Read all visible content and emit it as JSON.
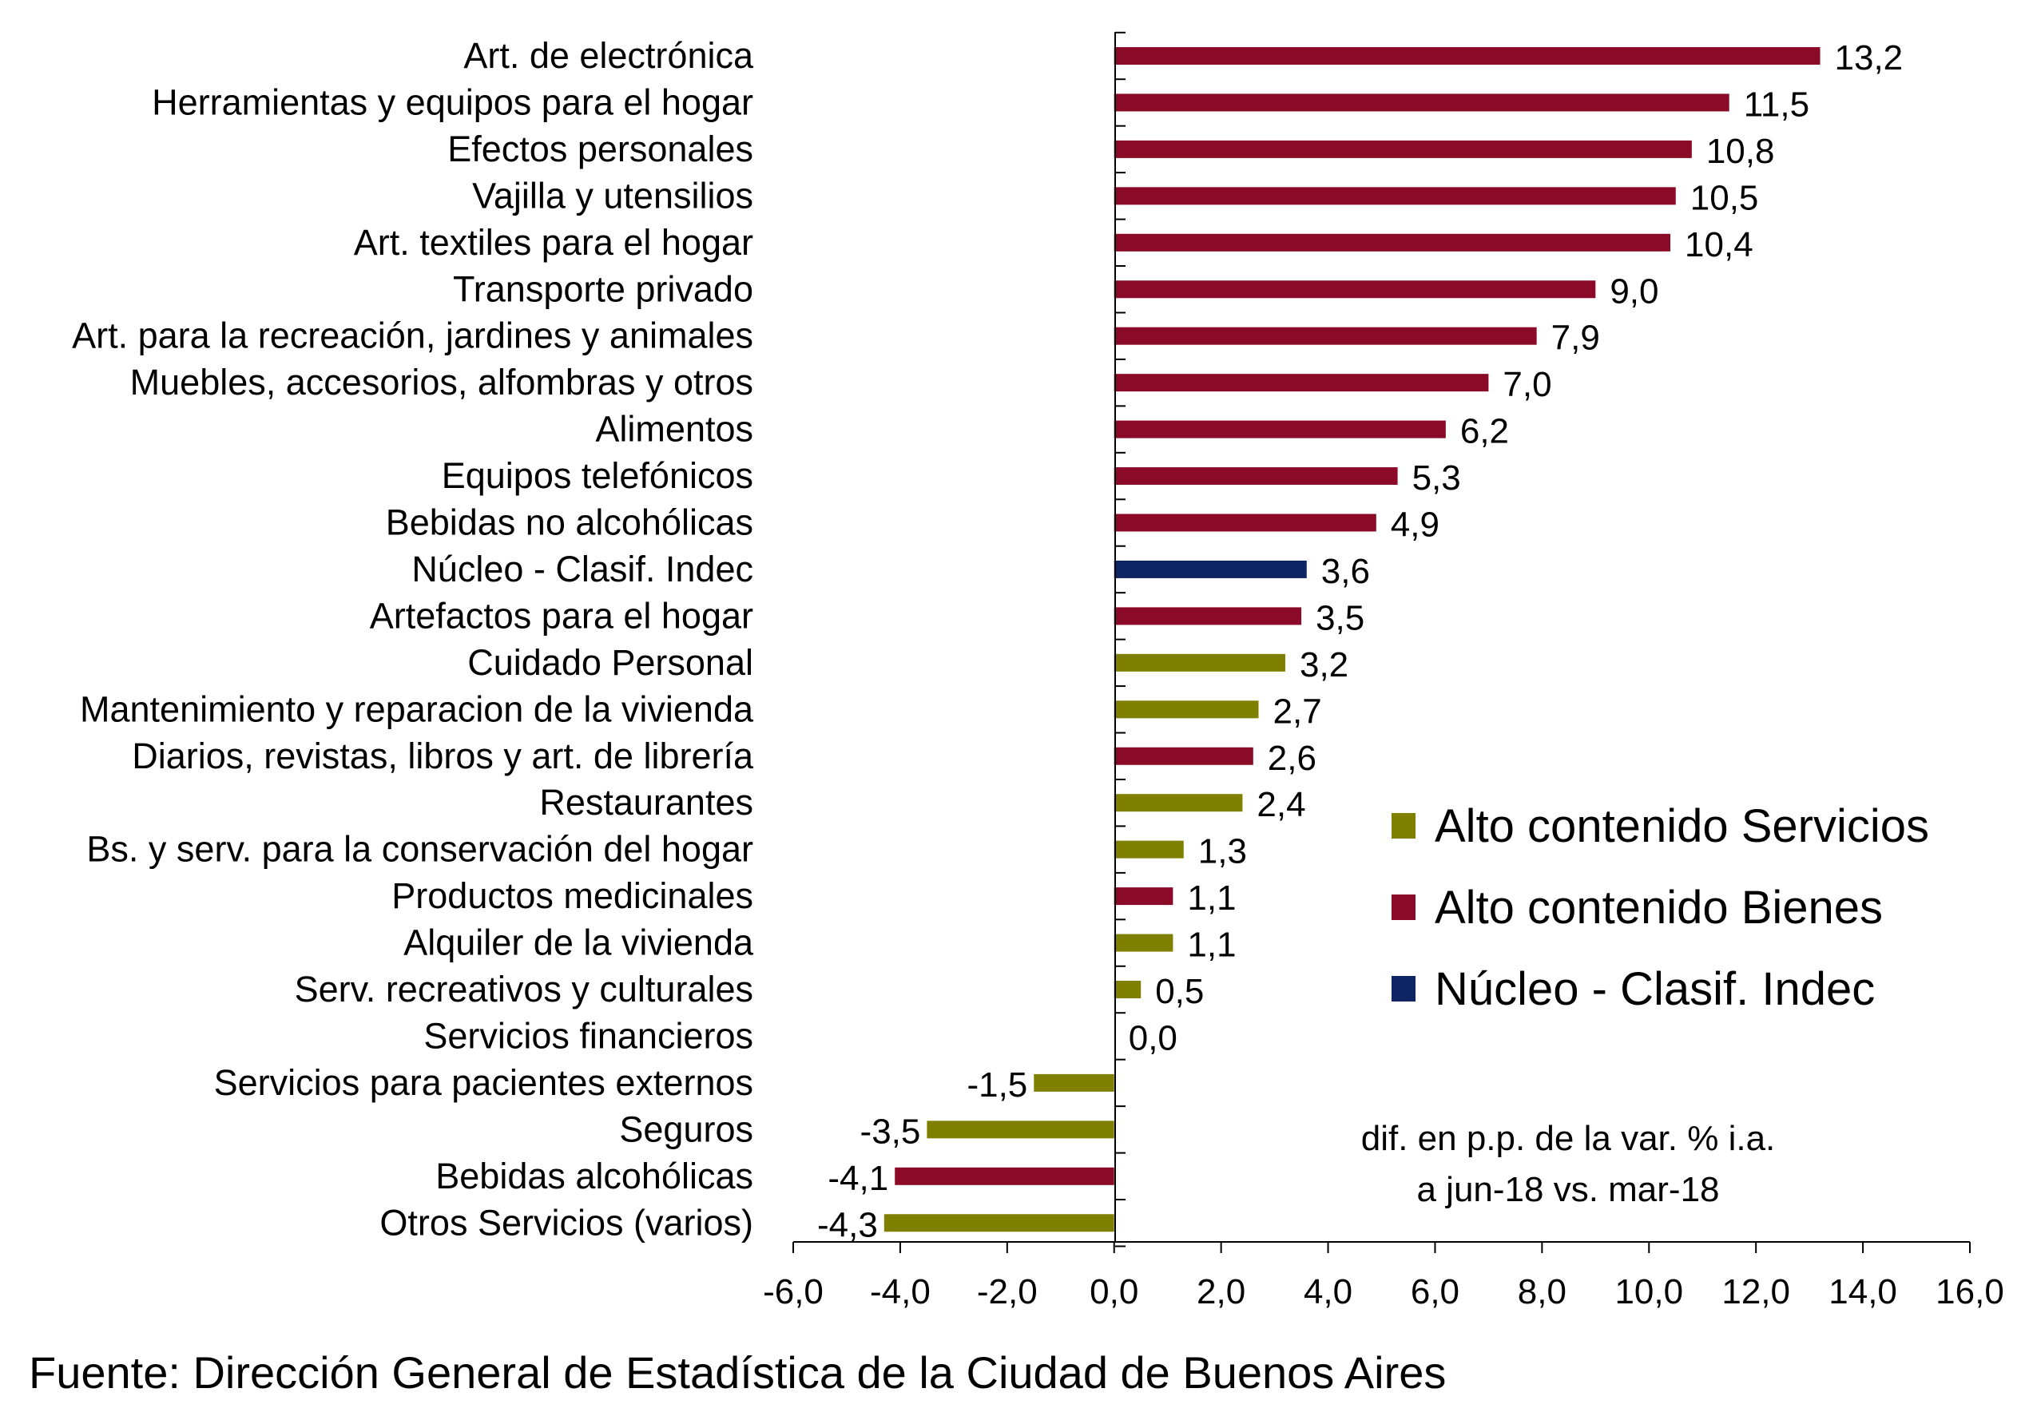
{
  "chart_data": {
    "type": "bar",
    "orientation": "horizontal",
    "categories": [
      "Art. de electrónica",
      "Herramientas y equipos para el hogar",
      "Efectos personales",
      "Vajilla y utensilios",
      "Art. textiles para el hogar",
      "Transporte privado",
      "Art. para la recreación, jardines y animales",
      "Muebles, accesorios, alfombras y otros",
      "Alimentos",
      "Equipos telefónicos",
      "Bebidas no alcohólicas",
      "Núcleo - Clasif. Indec",
      "Artefactos para el hogar",
      "Cuidado Personal",
      "Mantenimiento y reparacion de la vivienda",
      "Diarios, revistas, libros y art. de librería",
      "Restaurantes",
      "Bs. y serv. para la conservación del hogar",
      "Productos medicinales",
      "Alquiler de la vivienda",
      "Serv. recreativos y culturales",
      "Servicios financieros",
      "Servicios para pacientes externos",
      "Seguros",
      "Bebidas alcohólicas",
      "Otros Servicios (varios)"
    ],
    "values": [
      13.2,
      11.5,
      10.8,
      10.5,
      10.4,
      9.0,
      7.9,
      7.0,
      6.2,
      5.3,
      4.9,
      3.6,
      3.5,
      3.2,
      2.7,
      2.6,
      2.4,
      1.3,
      1.1,
      1.1,
      0.5,
      0.0,
      -1.5,
      -3.5,
      -4.1,
      -4.3
    ],
    "value_labels": [
      "13,2",
      "11,5",
      "10,8",
      "10,5",
      "10,4",
      "9,0",
      "7,9",
      "7,0",
      "6,2",
      "5,3",
      "4,9",
      "3,6",
      "3,5",
      "3,2",
      "2,7",
      "2,6",
      "2,4",
      "1,3",
      "1,1",
      "1,1",
      "0,5",
      "0,0",
      "-1,5",
      "-3,5",
      "-4,1",
      "-4,3"
    ],
    "groups": [
      "bienes",
      "bienes",
      "bienes",
      "bienes",
      "bienes",
      "bienes",
      "bienes",
      "bienes",
      "bienes",
      "bienes",
      "bienes",
      "nucleo",
      "bienes",
      "servicios",
      "servicios",
      "bienes",
      "servicios",
      "servicios",
      "bienes",
      "servicios",
      "servicios",
      "servicios",
      "servicios",
      "servicios",
      "bienes",
      "servicios"
    ],
    "xlim": [
      -6.0,
      16.0
    ],
    "xticks": [
      -6,
      -4,
      -2,
      0,
      2,
      4,
      6,
      8,
      10,
      12,
      14,
      16
    ],
    "xtick_labels": [
      "-6,0",
      "-4,0",
      "-2,0",
      "0,0",
      "2,0",
      "4,0",
      "6,0",
      "8,0",
      "10,0",
      "12,0",
      "14,0",
      "16,0"
    ],
    "legend": [
      {
        "key": "servicios",
        "label": "Alto contenido Servicios",
        "color": "#808000"
      },
      {
        "key": "bienes",
        "label": "Alto contenido Bienes",
        "color": "#8b0a27"
      },
      {
        "key": "nucleo",
        "label": "Núcleo - Clasif. Indec",
        "color": "#0f2463"
      }
    ],
    "legend_position": "right",
    "annotation": [
      "dif. en p.p. de la var. % i.a.",
      "a jun-18 vs. mar-18"
    ],
    "grid": false
  },
  "source": "Fuente: Dirección General de Estadística de la Ciudad de Buenos Aires"
}
